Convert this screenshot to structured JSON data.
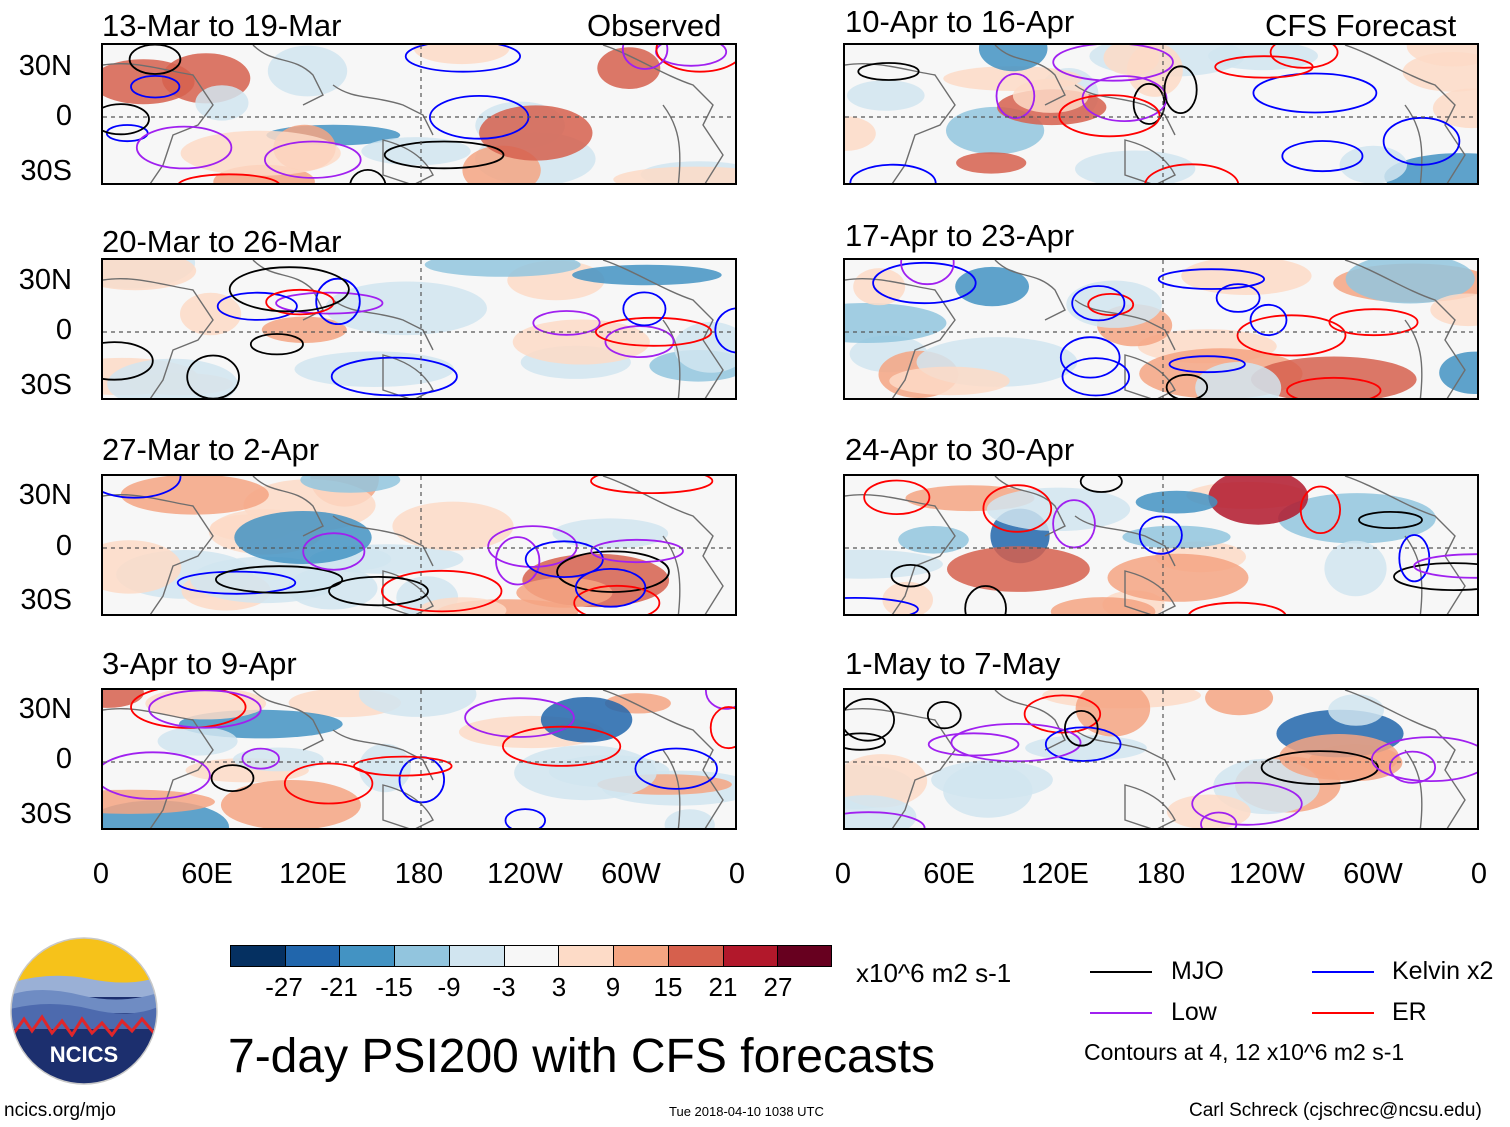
{
  "title": "7-day PSI200 with CFS forecasts",
  "observed_label": "Observed",
  "forecast_label": "CFS Forecast",
  "panels": [
    {
      "label": "13-Mar to 19-Mar"
    },
    {
      "label": "20-Mar to 26-Mar"
    },
    {
      "label": "27-Mar to 2-Apr"
    },
    {
      "label": "3-Apr to 9-Apr"
    },
    {
      "label": "10-Apr to 16-Apr"
    },
    {
      "label": "17-Apr to 23-Apr"
    },
    {
      "label": "24-Apr to 30-Apr"
    },
    {
      "label": "1-May to 7-May"
    }
  ],
  "lat_labels": [
    "30N",
    "0",
    "30S"
  ],
  "lon_labels": [
    "0",
    "60E",
    "120E",
    "180",
    "120W",
    "60W",
    "0"
  ],
  "colorbar": {
    "colors": [
      "#053061",
      "#2166ac",
      "#4393c3",
      "#92c5de",
      "#d1e5f0",
      "#f7f7f7",
      "#fddbc7",
      "#f4a582",
      "#d6604d",
      "#b2182b",
      "#67001f"
    ],
    "ticks": [
      "-27",
      "-21",
      "-15",
      "-9",
      "-3",
      "3",
      "9",
      "15",
      "21",
      "27"
    ],
    "units": "x10^6 m2 s-1"
  },
  "legend": [
    {
      "label": "MJO",
      "color": "#000000"
    },
    {
      "label": "Kelvin x2",
      "color": "#0000ff"
    },
    {
      "label": "Low",
      "color": "#a020f0"
    },
    {
      "label": "ER",
      "color": "#ff0000"
    }
  ],
  "contour_note": "Contours at 4, 12 x10^6 m2 s-1",
  "logo_text": "NCICS",
  "footer": {
    "url": "ncics.org/mjo",
    "timestamp": "Tue 2018-04-10 1038 UTC",
    "author": "Carl Schreck (cjschrec@ncsu.edu)"
  }
}
